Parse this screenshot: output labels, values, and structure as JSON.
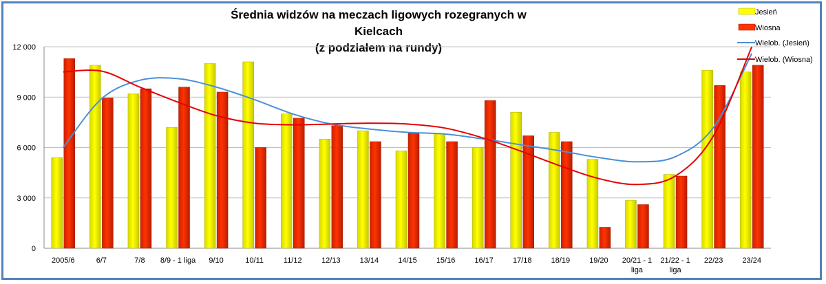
{
  "chart_data": {
    "type": "bar",
    "title_line1": "Średnia widzów na meczach ligowych rozegranych w Kielcach",
    "title_line2": "(z podziałem  na rundy)",
    "categories": [
      [
        "2005/6"
      ],
      [
        "6/7"
      ],
      [
        "7/8"
      ],
      [
        "8/9 - 1 liga"
      ],
      [
        "9/10"
      ],
      [
        "10/11"
      ],
      [
        "11/12"
      ],
      [
        "12/13"
      ],
      [
        "13/14"
      ],
      [
        "14/15"
      ],
      [
        "15/16"
      ],
      [
        "16/17"
      ],
      [
        "17/18"
      ],
      [
        "18/19"
      ],
      [
        "19/20"
      ],
      [
        "20/21 - 1",
        "liga"
      ],
      [
        "21/22 - 1",
        "liga"
      ],
      [
        "22/23"
      ],
      [
        "23/24"
      ]
    ],
    "ylim": [
      0,
      12000
    ],
    "yticks": [
      0,
      3000,
      6000,
      9000,
      12000
    ],
    "ytick_labels": [
      "0",
      "3 000",
      "6 000",
      "9 000",
      "12 000"
    ],
    "grid": true,
    "legend_position": "right",
    "series": [
      {
        "name": "Jesień",
        "color": "#ffff00",
        "values": [
          5400,
          10900,
          9200,
          7200,
          11000,
          11100,
          8000,
          6500,
          7000,
          5800,
          6800,
          6000,
          8100,
          6900,
          5300,
          2850,
          4400,
          10600,
          10500
        ]
      },
      {
        "name": "Wiosna",
        "color": "#ff3300",
        "values": [
          11300,
          8950,
          9500,
          9600,
          9300,
          6000,
          7750,
          7300,
          6350,
          6850,
          6350,
          8800,
          6700,
          6350,
          1250,
          2600,
          4300,
          9700,
          10900
        ]
      }
    ],
    "trendlines": [
      {
        "name": "Wielob. (Jesień)",
        "color": "#4a90d9",
        "values": [
          6000,
          8900,
          10000,
          10100,
          9600,
          8850,
          8000,
          7400,
          7100,
          6900,
          6800,
          6500,
          6150,
          5800,
          5400,
          5150,
          5450,
          7200,
          11600
        ]
      },
      {
        "name": "Wielob. (Wiosna)",
        "color": "#e60000",
        "values": [
          10500,
          10550,
          9600,
          8700,
          7900,
          7450,
          7350,
          7400,
          7450,
          7400,
          7150,
          6550,
          5750,
          4900,
          4150,
          3800,
          4300,
          6700,
          12000
        ]
      }
    ]
  }
}
